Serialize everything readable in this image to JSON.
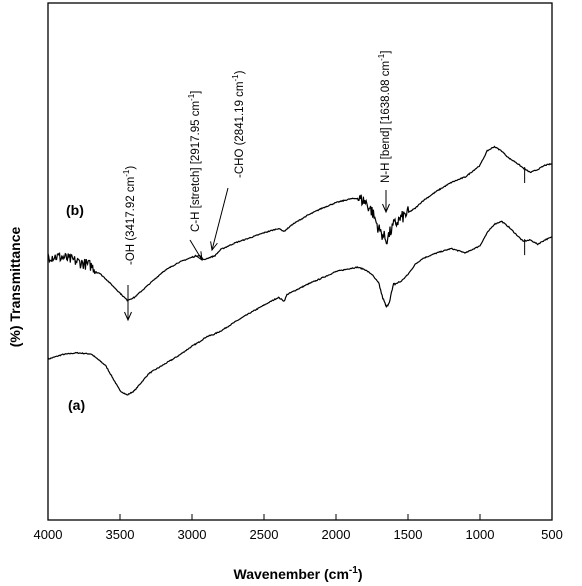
{
  "chart_data": {
    "type": "line",
    "xlabel": "Wavenember (cm",
    "xlabel_sup": "-1",
    "xlabel_suffix": ")",
    "ylabel": "(%) Transmittance",
    "xlim": [
      4000,
      500
    ],
    "x_reversed": true,
    "xticks": [
      4000,
      3500,
      3000,
      2500,
      2000,
      1500,
      1000,
      500
    ],
    "grid": false,
    "series": [
      {
        "name": "(a)",
        "color": "#000000",
        "points": [
          [
            4000,
            56.0
          ],
          [
            3900,
            57.6
          ],
          [
            3800,
            58.2
          ],
          [
            3700,
            57.8
          ],
          [
            3600,
            53.8
          ],
          [
            3500,
            45.0
          ],
          [
            3450,
            43.5
          ],
          [
            3400,
            45.0
          ],
          [
            3300,
            51.0
          ],
          [
            3200,
            54.0
          ],
          [
            3100,
            57.0
          ],
          [
            3000,
            60.5
          ],
          [
            2950,
            62.0
          ],
          [
            2900,
            63.8
          ],
          [
            2850,
            64.6
          ],
          [
            2800,
            65.8
          ],
          [
            2700,
            69.0
          ],
          [
            2600,
            72.0
          ],
          [
            2500,
            74.8
          ],
          [
            2400,
            77.5
          ],
          [
            2360,
            76.2
          ],
          [
            2340,
            78.5
          ],
          [
            2300,
            79.5
          ],
          [
            2200,
            82.0
          ],
          [
            2100,
            84.2
          ],
          [
            2000,
            86.5
          ],
          [
            1900,
            87.6
          ],
          [
            1850,
            88.0
          ],
          [
            1800,
            87.2
          ],
          [
            1750,
            85.5
          ],
          [
            1700,
            82.0
          ],
          [
            1680,
            78.0
          ],
          [
            1650,
            74.0
          ],
          [
            1630,
            76.0
          ],
          [
            1600,
            82.0
          ],
          [
            1550,
            83.0
          ],
          [
            1500,
            85.5
          ],
          [
            1450,
            89.0
          ],
          [
            1400,
            91.0
          ],
          [
            1300,
            93.0
          ],
          [
            1200,
            94.5
          ],
          [
            1100,
            93.0
          ],
          [
            1000,
            95.5
          ],
          [
            950,
            100.0
          ],
          [
            900,
            103.0
          ],
          [
            850,
            104.0
          ],
          [
            800,
            102.0
          ],
          [
            750,
            99.5
          ],
          [
            700,
            97.0
          ],
          [
            650,
            97.5
          ],
          [
            600,
            96.0
          ],
          [
            550,
            97.5
          ],
          [
            500,
            98.5
          ]
        ]
      },
      {
        "name": "(b)",
        "color": "#000000",
        "points": [
          [
            4000,
            92.0
          ],
          [
            3900,
            91.5
          ],
          [
            3800,
            90.0
          ],
          [
            3700,
            88.5
          ],
          [
            3600,
            84.0
          ],
          [
            3500,
            79.0
          ],
          [
            3450,
            76.5
          ],
          [
            3400,
            77.5
          ],
          [
            3300,
            82.0
          ],
          [
            3200,
            86.5
          ],
          [
            3100,
            89.5
          ],
          [
            3000,
            91.5
          ],
          [
            2950,
            92.2
          ],
          [
            2917,
            90.5
          ],
          [
            2900,
            91.0
          ],
          [
            2841,
            92.0
          ],
          [
            2800,
            94.2
          ],
          [
            2700,
            96.5
          ],
          [
            2600,
            98.2
          ],
          [
            2500,
            100.0
          ],
          [
            2400,
            101.5
          ],
          [
            2360,
            100.5
          ],
          [
            2300,
            103.0
          ],
          [
            2200,
            106.0
          ],
          [
            2100,
            108.5
          ],
          [
            2000,
            110.5
          ],
          [
            1900,
            111.8
          ],
          [
            1850,
            112.0
          ],
          [
            1800,
            111.0
          ],
          [
            1750,
            107.5
          ],
          [
            1700,
            101.0
          ],
          [
            1650,
            97.5
          ],
          [
            1600,
            102.5
          ],
          [
            1550,
            105.0
          ],
          [
            1500,
            107.0
          ],
          [
            1450,
            108.5
          ],
          [
            1400,
            111.0
          ],
          [
            1300,
            114.5
          ],
          [
            1200,
            117.5
          ],
          [
            1100,
            119.5
          ],
          [
            1000,
            123.5
          ],
          [
            950,
            128.5
          ],
          [
            900,
            130.0
          ],
          [
            850,
            128.5
          ],
          [
            800,
            126.0
          ],
          [
            750,
            124.5
          ],
          [
            700,
            122.5
          ],
          [
            650,
            121.0
          ],
          [
            600,
            122.0
          ],
          [
            550,
            123.5
          ],
          [
            500,
            124.0
          ]
        ]
      }
    ],
    "series_labels": [
      {
        "text": "(a)",
        "series": 0
      },
      {
        "text": "(b)",
        "series": 1
      }
    ],
    "annotations": [
      {
        "text": "-OH (3417.92 cm",
        "sup": "-1",
        "suffix": ")",
        "x": 3418
      },
      {
        "text": "C-H [stretch] [2917.95 cm",
        "sup": "-1",
        "suffix": "]",
        "x": 2918
      },
      {
        "text": "-CHO (2841.19 cm",
        "sup": "-1",
        "suffix": ")",
        "x": 2841
      },
      {
        "text": "N-H [bend] [1638.08 cm",
        "sup": "-1",
        "suffix": "]",
        "x": 1638
      }
    ]
  }
}
